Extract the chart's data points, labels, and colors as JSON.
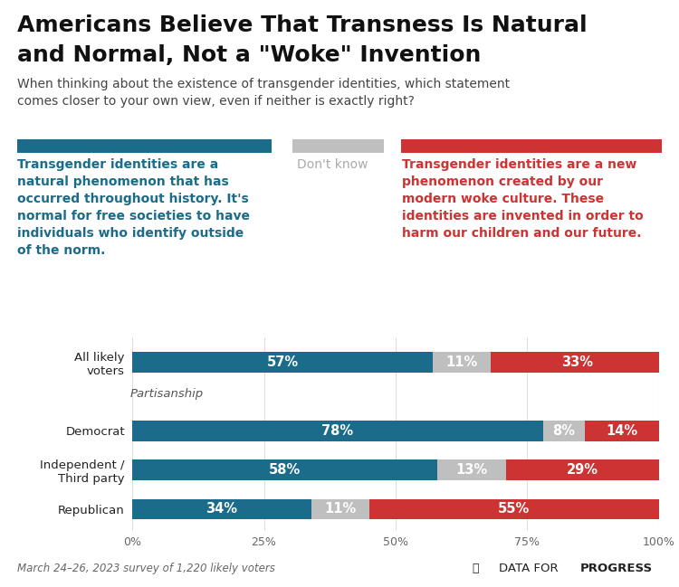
{
  "title_line1": "Americans Believe That Transness Is Natural",
  "title_line2": "and Normal, Not a \"Woke\" Invention",
  "subtitle": "When thinking about the existence of transgender identities, which statement\ncomes closer to your own view, even if neither is exactly right?",
  "left_legend_text": "Transgender identities are a\nnatural phenomenon that has\noccurred throughout history. It's\nnormal for free societies to have\nindividuals who identify outside\nof the norm.",
  "middle_legend_text": "Don't know",
  "right_legend_text": "Transgender identities are a new\nphenomenon created by our\nmodern woke culture. These\nidentities are invented in order to\nharm our children and our future.",
  "categories": [
    "All likely\nvoters",
    "Democrat",
    "Independent /\nThird party",
    "Republican"
  ],
  "natural_values": [
    57,
    78,
    58,
    34
  ],
  "dontknow_values": [
    11,
    8,
    13,
    11
  ],
  "woke_values": [
    33,
    14,
    29,
    55
  ],
  "partisanship_label": "Partisanship",
  "footnote": "March 24–26, 2023 survey of 1,220 likely voters",
  "brand_regular": "DATA FOR ",
  "brand_bold": "PROGRESS",
  "color_natural": "#1b6b8a",
  "color_dontknow": "#c0bfbf",
  "color_woke": "#cc3333",
  "background_color": "#ffffff",
  "bar_height": 0.42,
  "xlim": [
    0,
    100
  ],
  "xlabel_ticks": [
    0,
    25,
    50,
    75,
    100
  ],
  "xlabel_tick_labels": [
    "0%",
    "25%",
    "50%",
    "75%",
    "100%"
  ],
  "title_fontsize": 18,
  "subtitle_fontsize": 10,
  "legend_text_fontsize": 10,
  "bar_label_fontsize": 10.5
}
